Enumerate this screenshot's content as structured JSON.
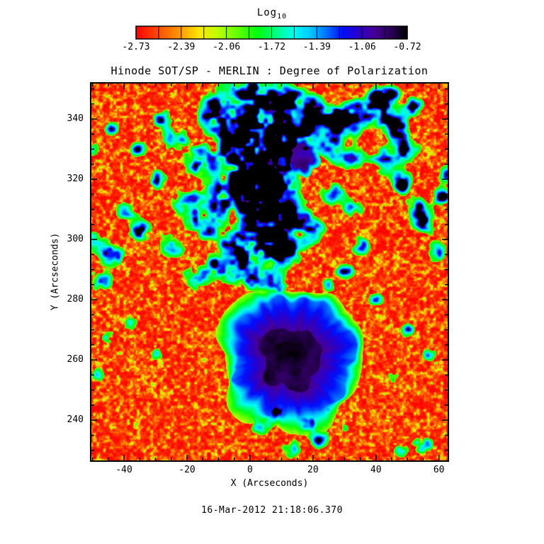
{
  "colorbar": {
    "title_main": "Log",
    "title_sub": "10",
    "tick_labels": [
      "-2.73",
      "-2.39",
      "-2.06",
      "-1.72",
      "-1.39",
      "-1.06",
      "-0.72"
    ]
  },
  "plot": {
    "title": "Hinode SOT/SP - MERLIN : Degree of Polarization",
    "xlabel": "X (Arcseconds)",
    "ylabel": "Y (Arcseconds)",
    "x_tick_labels": [
      "-40",
      "-20",
      "0",
      "20",
      "40",
      "60"
    ],
    "y_tick_labels": [
      "240",
      "260",
      "280",
      "300",
      "320",
      "340"
    ]
  },
  "footer": {
    "timestamp": "16-Mar-2012 21:18:06.370"
  },
  "chart_data": {
    "type": "heatmap",
    "title": "Hinode SOT/SP - MERLIN : Degree of Polarization",
    "xlabel": "X (Arcseconds)",
    "ylabel": "Y (Arcseconds)",
    "colorbar_title": "Log10",
    "value_label": "Log10 Degree of Polarization",
    "value_ticks": [
      -2.73,
      -2.39,
      -2.06,
      -1.72,
      -1.39,
      -1.06,
      -0.72
    ],
    "value_range": [
      -2.73,
      -0.72
    ],
    "x_ticks": [
      -40,
      -20,
      0,
      20,
      40,
      60
    ],
    "y_ticks": [
      240,
      260,
      280,
      300,
      320,
      340
    ],
    "minor_tick_step": 5,
    "x_range": [
      -50.6,
      63.0
    ],
    "y_range": [
      226.4,
      352.0
    ],
    "grid": false,
    "legend_position": "top-colorbar",
    "annotation": "16-Mar-2012 21:18:06.370",
    "colormap": [
      [
        0.0,
        "#ff0000"
      ],
      [
        0.08,
        "#ff4d00"
      ],
      [
        0.16,
        "#ff9900"
      ],
      [
        0.23,
        "#ffe600"
      ],
      [
        0.3,
        "#bfff00"
      ],
      [
        0.38,
        "#59ff00"
      ],
      [
        0.45,
        "#00ff11"
      ],
      [
        0.52,
        "#00ff88"
      ],
      [
        0.58,
        "#00ffee"
      ],
      [
        0.64,
        "#00ccff"
      ],
      [
        0.7,
        "#0077ff"
      ],
      [
        0.76,
        "#0011ff"
      ],
      [
        0.82,
        "#2b00cc"
      ],
      [
        0.88,
        "#470099"
      ],
      [
        0.94,
        "#2b0057"
      ],
      [
        1.0,
        "#000000"
      ]
    ],
    "background_description": "quiet sun, red-orange speckle, log10 p near -2.7",
    "features": [
      {
        "name": "sunspot",
        "x": 13,
        "y": 261,
        "umbra_radius": 10,
        "penumbra_radius": 19.5,
        "rim_radius": 24,
        "description": "large sunspot: near-black mottled umbra, blue-violet penumbra with radial filaments, cyan-green outer rim"
      },
      {
        "name": "pore",
        "x": 15.5,
        "y": 328,
        "radius": 4.5,
        "description": "small dark violet pore embedded in plage network"
      },
      {
        "name": "plage_network",
        "description": "patchy green-cyan-blue enhanced polarization network with violet pockets",
        "blobs": [
          [
            -2,
            348,
            9,
            1
          ],
          [
            10,
            346,
            8,
            1.1
          ],
          [
            20,
            342,
            7,
            1
          ],
          [
            29,
            339,
            7,
            1
          ],
          [
            -12,
            342,
            7,
            0.9
          ],
          [
            4,
            339,
            8,
            1.2
          ],
          [
            -4,
            332,
            8,
            1.1
          ],
          [
            8,
            330,
            7,
            1
          ],
          [
            16,
            333,
            6,
            0.9
          ],
          [
            -16,
            326,
            6,
            0.9
          ],
          [
            -24,
            333,
            5,
            0.8
          ],
          [
            0,
            322,
            8,
            1.2
          ],
          [
            10,
            319,
            7,
            1
          ],
          [
            -8,
            315,
            7,
            1
          ],
          [
            -20,
            312,
            6,
            0.9
          ],
          [
            3,
            311,
            8,
            1.2
          ],
          [
            14,
            308,
            6,
            0.9
          ],
          [
            -14,
            305,
            6,
            0.9
          ],
          [
            5,
            300,
            8,
            1.1
          ],
          [
            -4,
            297,
            7,
            1
          ],
          [
            -25,
            298,
            5,
            0.8
          ],
          [
            -35,
            303,
            5,
            0.8
          ],
          [
            -44,
            295,
            5,
            0.9
          ],
          [
            -48,
            286,
            5,
            0.9
          ],
          [
            12,
            296,
            6,
            0.9
          ],
          [
            20,
            303,
            5,
            0.8
          ],
          [
            26,
            315,
            5,
            0.8
          ],
          [
            32,
            327,
            5,
            0.8
          ],
          [
            -10,
            291,
            6,
            0.9
          ],
          [
            0,
            288,
            6,
            0.9
          ],
          [
            8,
            285,
            5,
            0.8
          ],
          [
            -18,
            287,
            5,
            0.8
          ],
          [
            36,
            342,
            5,
            0.9
          ],
          [
            44,
            348,
            5,
            0.9
          ],
          [
            52,
            344,
            4,
            0.8
          ],
          [
            25,
            330,
            5,
            0.8
          ],
          [
            33,
            310,
            4,
            0.7
          ],
          [
            55,
            306,
            5,
            0.9
          ],
          [
            61,
            314,
            4,
            0.9
          ],
          [
            59,
            296,
            4,
            0.8
          ],
          [
            63,
            322,
            4,
            0.8
          ],
          [
            48,
            318,
            3,
            0.7
          ],
          [
            -40,
            310,
            4,
            0.7
          ],
          [
            -50,
            300,
            4,
            0.8
          ],
          [
            45,
            338,
            6,
            1
          ],
          [
            50,
            330,
            5,
            0.9
          ],
          [
            42,
            326,
            5,
            0.8
          ],
          [
            48,
            320,
            4,
            0.8
          ],
          [
            40,
            345,
            5,
            0.9
          ],
          [
            52,
            312,
            4,
            0.7
          ],
          [
            10,
            243,
            5,
            0.9
          ],
          [
            18,
            240,
            4,
            0.8
          ],
          [
            3,
            238,
            4,
            0.8
          ],
          [
            22,
            234,
            4,
            0.8
          ],
          [
            13,
            231,
            4,
            0.8
          ],
          [
            6,
            247,
            4,
            0.8
          ],
          [
            25,
            243,
            3,
            0.7
          ],
          [
            30,
            238,
            3,
            0.7
          ],
          [
            40,
            280,
            3,
            0.7
          ],
          [
            50,
            270,
            3,
            0.7
          ],
          [
            57,
            262,
            3,
            0.7
          ],
          [
            45,
            255,
            3,
            0.7
          ],
          [
            38,
            265,
            3,
            0.6
          ],
          [
            55,
            232,
            4,
            0.8
          ],
          [
            48,
            230,
            3,
            0.7
          ],
          [
            -45,
            268,
            3,
            0.7
          ],
          [
            -38,
            272,
            3,
            0.6
          ],
          [
            -30,
            262,
            3,
            0.6
          ],
          [
            -48,
            255,
            3,
            0.7
          ],
          [
            30,
            290,
            4,
            0.7
          ],
          [
            35,
            298,
            4,
            0.7
          ],
          [
            25,
            285,
            3,
            0.6
          ],
          [
            -30,
            320,
            4,
            0.8
          ],
          [
            -36,
            330,
            4,
            0.8
          ],
          [
            -28,
            340,
            4,
            0.8
          ],
          [
            -44,
            337,
            3,
            0.7
          ],
          [
            -50,
            330,
            3,
            0.7
          ]
        ]
      }
    ]
  }
}
